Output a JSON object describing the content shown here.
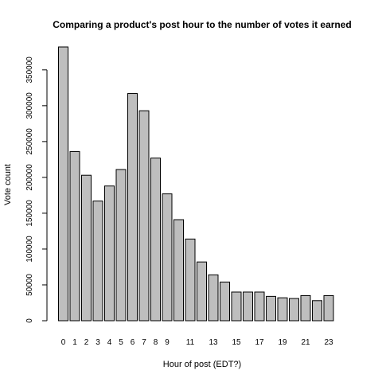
{
  "chart_data": {
    "type": "bar",
    "title": "Comparing a product's post hour to the number of votes it earned",
    "xlabel": "Hour of post (EDT?)",
    "ylabel": "Vote count",
    "categories": [
      "0",
      "1",
      "2",
      "3",
      "4",
      "5",
      "6",
      "7",
      "8",
      "9",
      "10",
      "11",
      "12",
      "13",
      "14",
      "15",
      "16",
      "17",
      "18",
      "19",
      "20",
      "21",
      "22",
      "23"
    ],
    "shown_x_ticks": [
      "0",
      "1",
      "2",
      "3",
      "4",
      "5",
      "6",
      "7",
      "8",
      "9",
      "11",
      "13",
      "15",
      "17",
      "19",
      "21",
      "23"
    ],
    "values": [
      382000,
      236000,
      203000,
      167000,
      188000,
      211000,
      317000,
      293000,
      227000,
      177000,
      141000,
      114000,
      82000,
      64000,
      54000,
      40000,
      40000,
      40000,
      34000,
      32000,
      31000,
      35000,
      28000,
      35000
    ],
    "yticks": [
      0,
      50000,
      100000,
      150000,
      200000,
      250000,
      300000,
      350000
    ],
    "ylim": [
      0,
      382000
    ],
    "grid": false,
    "bar_color": "#bebebe",
    "border_color": "#000000"
  }
}
